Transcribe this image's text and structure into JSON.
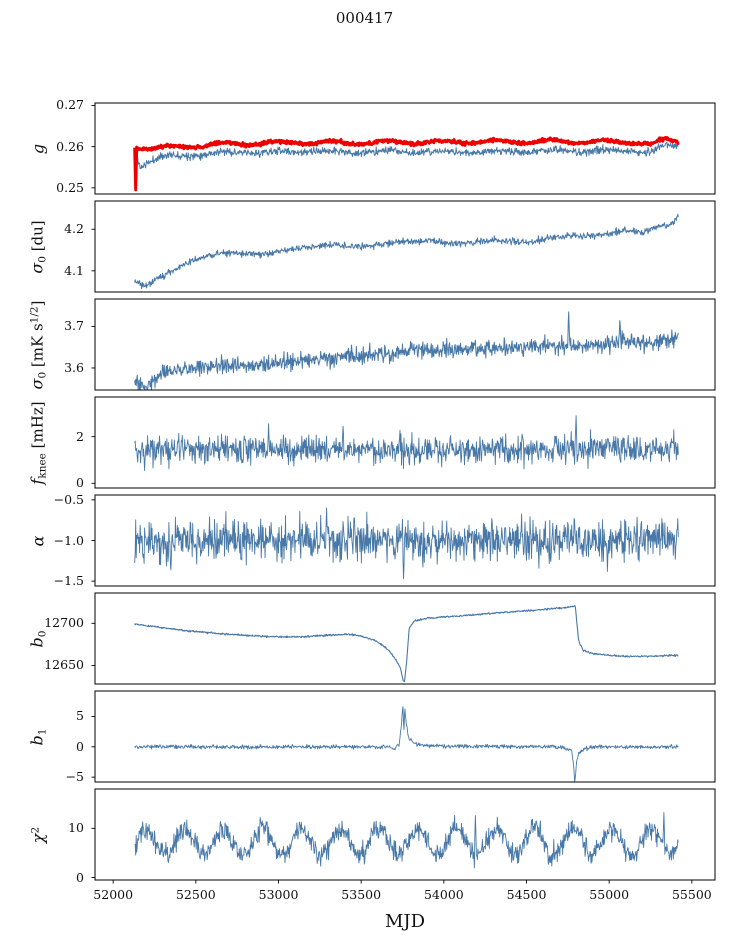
{
  "title": "000417",
  "axes": {
    "xlabel": "MJD",
    "x_min": 51890,
    "x_max": 55640,
    "xticks": [
      52000,
      52500,
      53000,
      53500,
      54000,
      54500,
      55000,
      55500
    ]
  },
  "colors": {
    "data_line": "#4878a8",
    "highlight_line": "#ee0000",
    "axis": "#000000",
    "text": "#111111"
  },
  "chart_data": [
    {
      "type": "line",
      "id": "g",
      "ylabel": [
        {
          "t": "g",
          "s": "i"
        }
      ],
      "ylim": [
        0.2485,
        0.2706
      ],
      "yticks": [
        {
          "v": 0.27,
          "label": "0.27"
        },
        {
          "v": 0.26,
          "label": "0.26"
        },
        {
          "v": 0.25,
          "label": "0.25"
        }
      ],
      "series": [
        {
          "name": "g-raw",
          "color": "data_line",
          "width": 1,
          "seed": 11,
          "x_start": 52130,
          "x_end": 55420,
          "step": 3,
          "noise": 0.00045,
          "periodic": {
            "amp": 0.00025,
            "period": 330,
            "x0": 52250
          },
          "trend": [
            [
              52130,
              0.2586
            ],
            [
              52165,
              0.2552
            ],
            [
              52210,
              0.2562
            ],
            [
              52300,
              0.2576
            ],
            [
              52450,
              0.258
            ],
            [
              52700,
              0.2586
            ],
            [
              52950,
              0.2586
            ],
            [
              53200,
              0.2589
            ],
            [
              53450,
              0.2586
            ],
            [
              53700,
              0.2589
            ],
            [
              53950,
              0.2586
            ],
            [
              54200,
              0.2588
            ],
            [
              54450,
              0.2588
            ],
            [
              54700,
              0.259
            ],
            [
              54950,
              0.2589
            ],
            [
              55150,
              0.259
            ],
            [
              55260,
              0.2586
            ],
            [
              55340,
              0.2602
            ],
            [
              55420,
              0.2606
            ]
          ],
          "spikes": [
            [
              52136,
              0.2506
            ]
          ]
        },
        {
          "name": "g-calibrated",
          "color": "highlight_line",
          "width": 3,
          "seed": 12,
          "x_start": 52130,
          "x_end": 55420,
          "step": 3,
          "noise": 0.0002,
          "periodic": {
            "amp": 0.0004,
            "period": 330,
            "x0": 52250
          },
          "trend": [
            [
              52130,
              0.2601
            ],
            [
              52250,
              0.2596
            ],
            [
              52450,
              0.2601
            ],
            [
              52700,
              0.2607
            ],
            [
              52950,
              0.2609
            ],
            [
              53200,
              0.2611
            ],
            [
              53450,
              0.2609
            ],
            [
              53700,
              0.2611
            ],
            [
              53950,
              0.2611
            ],
            [
              54200,
              0.2612
            ],
            [
              54450,
              0.2612
            ],
            [
              54700,
              0.2613
            ],
            [
              54950,
              0.2612
            ],
            [
              55150,
              0.2611
            ],
            [
              55260,
              0.2605
            ],
            [
              55340,
              0.2617
            ],
            [
              55420,
              0.2613
            ]
          ],
          "spikes": [
            [
              52136,
              0.2495
            ]
          ]
        }
      ]
    },
    {
      "type": "line",
      "id": "sigma0-du",
      "ylabel": [
        {
          "t": "σ",
          "s": "i"
        },
        {
          "t": "0",
          "s": "sub"
        },
        {
          "t": " [du]",
          "s": "n"
        }
      ],
      "ylim": [
        4.049,
        4.268
      ],
      "yticks": [
        {
          "v": 4.2,
          "label": "4.2"
        },
        {
          "v": 4.1,
          "label": "4.1"
        }
      ],
      "series": [
        {
          "name": "sigma0-du",
          "color": "data_line",
          "width": 1,
          "seed": 21,
          "x_start": 52130,
          "x_end": 55420,
          "step": 3,
          "noise": 0.004,
          "trend": [
            [
              52130,
              4.075
            ],
            [
              52200,
              4.064
            ],
            [
              52350,
              4.1
            ],
            [
              52500,
              4.128
            ],
            [
              52650,
              4.143
            ],
            [
              52900,
              4.139
            ],
            [
              53100,
              4.153
            ],
            [
              53300,
              4.163
            ],
            [
              53500,
              4.158
            ],
            [
              53700,
              4.168
            ],
            [
              53900,
              4.173
            ],
            [
              54100,
              4.164
            ],
            [
              54300,
              4.174
            ],
            [
              54500,
              4.169
            ],
            [
              54700,
              4.183
            ],
            [
              54900,
              4.184
            ],
            [
              55100,
              4.198
            ],
            [
              55200,
              4.193
            ],
            [
              55300,
              4.208
            ],
            [
              55380,
              4.215
            ],
            [
              55420,
              4.232
            ]
          ],
          "spikes": []
        }
      ]
    },
    {
      "type": "line",
      "id": "sigma0-mk",
      "ylabel": [
        {
          "t": "σ",
          "s": "i"
        },
        {
          "t": "0",
          "s": "sub"
        },
        {
          "t": " [mK s",
          "s": "n"
        },
        {
          "t": "1/2",
          "s": "sup"
        },
        {
          "t": "]",
          "s": "n"
        }
      ],
      "ylim": [
        3.547,
        3.766
      ],
      "yticks": [
        {
          "v": 3.7,
          "label": "3.7"
        },
        {
          "v": 3.6,
          "label": "3.6"
        }
      ],
      "series": [
        {
          "name": "sigma0-mk",
          "color": "data_line",
          "width": 1,
          "seed": 31,
          "x_start": 52130,
          "x_end": 55420,
          "step": 3,
          "noise": 0.01,
          "trend": [
            [
              52130,
              3.565
            ],
            [
              52180,
              3.549
            ],
            [
              52300,
              3.593
            ],
            [
              52500,
              3.601
            ],
            [
              52800,
              3.605
            ],
            [
              53100,
              3.615
            ],
            [
              53400,
              3.625
            ],
            [
              53700,
              3.639
            ],
            [
              54000,
              3.645
            ],
            [
              54300,
              3.649
            ],
            [
              54600,
              3.654
            ],
            [
              54900,
              3.653
            ],
            [
              55100,
              3.668
            ],
            [
              55250,
              3.659
            ],
            [
              55420,
              3.672
            ]
          ],
          "spikes": [
            [
              54755,
              3.735
            ],
            [
              55065,
              3.714
            ]
          ]
        }
      ]
    },
    {
      "type": "line",
      "id": "fknee",
      "ylabel": [
        {
          "t": "f",
          "s": "i"
        },
        {
          "t": "knee",
          "s": "sub"
        },
        {
          "t": " [mHz]",
          "s": "n"
        }
      ],
      "ylim": [
        -0.2,
        3.7
      ],
      "yticks": [
        {
          "v": 2,
          "label": "2"
        },
        {
          "v": 0,
          "label": "0"
        }
      ],
      "series": [
        {
          "name": "fknee",
          "color": "data_line",
          "width": 0.9,
          "seed": 41,
          "x_start": 52130,
          "x_end": 55420,
          "step": 3,
          "noise": 0.3,
          "trend": [
            [
              52130,
              1.45
            ],
            [
              55420,
              1.45
            ]
          ],
          "spikes": [
            [
              52190,
              0.55
            ],
            [
              52940,
              2.55
            ],
            [
              53390,
              2.45
            ],
            [
              54800,
              2.9
            ]
          ]
        }
      ]
    },
    {
      "type": "line",
      "id": "alpha",
      "ylabel": [
        {
          "t": "α",
          "s": "i"
        }
      ],
      "ylim": [
        -1.56,
        -0.44
      ],
      "yticks": [
        {
          "v": -0.5,
          "label": "−0.5"
        },
        {
          "v": -1.0,
          "label": "−1.0"
        },
        {
          "v": -1.5,
          "label": "−1.5"
        }
      ],
      "series": [
        {
          "name": "alpha",
          "color": "data_line",
          "width": 0.9,
          "seed": 51,
          "x_start": 52130,
          "x_end": 55420,
          "step": 3,
          "noise": 0.125,
          "trend": [
            [
              52130,
              -1.0
            ],
            [
              55420,
              -1.0
            ]
          ],
          "spikes": [
            [
              52350,
              -1.36
            ],
            [
              53290,
              -0.6
            ],
            [
              53755,
              -1.47
            ],
            [
              54990,
              -1.38
            ]
          ]
        }
      ]
    },
    {
      "type": "line",
      "id": "b0",
      "ylabel": [
        {
          "t": "b",
          "s": "i"
        },
        {
          "t": "0",
          "s": "sub"
        }
      ],
      "ylim": [
        12628,
        12736
      ],
      "yticks": [
        {
          "v": 12700,
          "label": "12700"
        },
        {
          "v": 12650,
          "label": "12650"
        }
      ],
      "series": [
        {
          "name": "b0",
          "color": "data_line",
          "width": 1.1,
          "seed": 61,
          "x_start": 52130,
          "x_end": 55420,
          "step": 3,
          "noise": 0.5,
          "trend": [
            [
              52130,
              12699
            ],
            [
              52250,
              12696
            ],
            [
              52450,
              12691
            ],
            [
              52700,
              12687
            ],
            [
              52950,
              12684
            ],
            [
              53150,
              12684
            ],
            [
              53300,
              12686
            ],
            [
              53420,
              12687
            ],
            [
              53500,
              12685
            ],
            [
              53580,
              12680
            ],
            [
              53650,
              12671
            ],
            [
              53700,
              12660
            ],
            [
              53735,
              12648
            ],
            [
              53755,
              12632
            ],
            [
              53762,
              12630
            ],
            [
              53775,
              12655
            ],
            [
              53790,
              12694
            ],
            [
              53820,
              12703
            ],
            [
              53900,
              12706
            ],
            [
              54100,
              12709
            ],
            [
              54300,
              12712
            ],
            [
              54500,
              12715
            ],
            [
              54700,
              12718
            ],
            [
              54780,
              12720
            ],
            [
              54795,
              12721
            ],
            [
              54805,
              12700
            ],
            [
              54815,
              12680
            ],
            [
              54840,
              12668
            ],
            [
              54900,
              12664
            ],
            [
              55000,
              12662
            ],
            [
              55100,
              12661
            ],
            [
              55250,
              12661
            ],
            [
              55420,
              12662
            ]
          ],
          "spikes": []
        }
      ]
    },
    {
      "type": "line",
      "id": "b1",
      "ylabel": [
        {
          "t": "b",
          "s": "i"
        },
        {
          "t": "1",
          "s": "sub"
        }
      ],
      "ylim": [
        -5.8,
        9.2
      ],
      "yticks": [
        {
          "v": 5,
          "label": "5"
        },
        {
          "v": 0,
          "label": "0"
        },
        {
          "v": -5,
          "label": "−5"
        }
      ],
      "series": [
        {
          "name": "b1",
          "color": "data_line",
          "width": 0.9,
          "seed": 71,
          "x_start": 52130,
          "x_end": 55420,
          "step": 3,
          "noise": 0.16,
          "trend": [
            [
              52130,
              0
            ],
            [
              53650,
              0
            ],
            [
              53700,
              -0.3
            ],
            [
              53730,
              0.5
            ],
            [
              53745,
              4
            ],
            [
              53752,
              7.2
            ],
            [
              53758,
              2.2
            ],
            [
              53764,
              6.4
            ],
            [
              53772,
              4
            ],
            [
              53785,
              1.5
            ],
            [
              53810,
              0.8
            ],
            [
              53860,
              0.3
            ],
            [
              54000,
              0.1
            ],
            [
              54700,
              0
            ],
            [
              54770,
              -0.5
            ],
            [
              54785,
              -3
            ],
            [
              54792,
              -6.2
            ],
            [
              54800,
              -3
            ],
            [
              54815,
              -1
            ],
            [
              54850,
              -0.3
            ],
            [
              54950,
              0
            ],
            [
              55420,
              0
            ]
          ],
          "spikes": []
        }
      ]
    },
    {
      "type": "line",
      "id": "chi2",
      "ylabel": [
        {
          "t": "χ",
          "s": "i"
        },
        {
          "t": "2",
          "s": "sup"
        }
      ],
      "ylim": [
        -0.5,
        18
      ],
      "yticks": [
        {
          "v": 10,
          "label": "10"
        },
        {
          "v": 0,
          "label": "0"
        }
      ],
      "series": [
        {
          "name": "chi2",
          "color": "data_line",
          "width": 0.9,
          "seed": 81,
          "x_start": 52130,
          "x_end": 55420,
          "step": 3,
          "noise": 1.05,
          "periodic": {
            "amp": 2.6,
            "period": 235,
            "x0": 52140
          },
          "trend": [
            [
              52130,
              7.2
            ],
            [
              55420,
              7.2
            ]
          ],
          "spikes": [
            [
              54190,
              12.6
            ],
            [
              55330,
              13.2
            ]
          ]
        }
      ]
    }
  ]
}
